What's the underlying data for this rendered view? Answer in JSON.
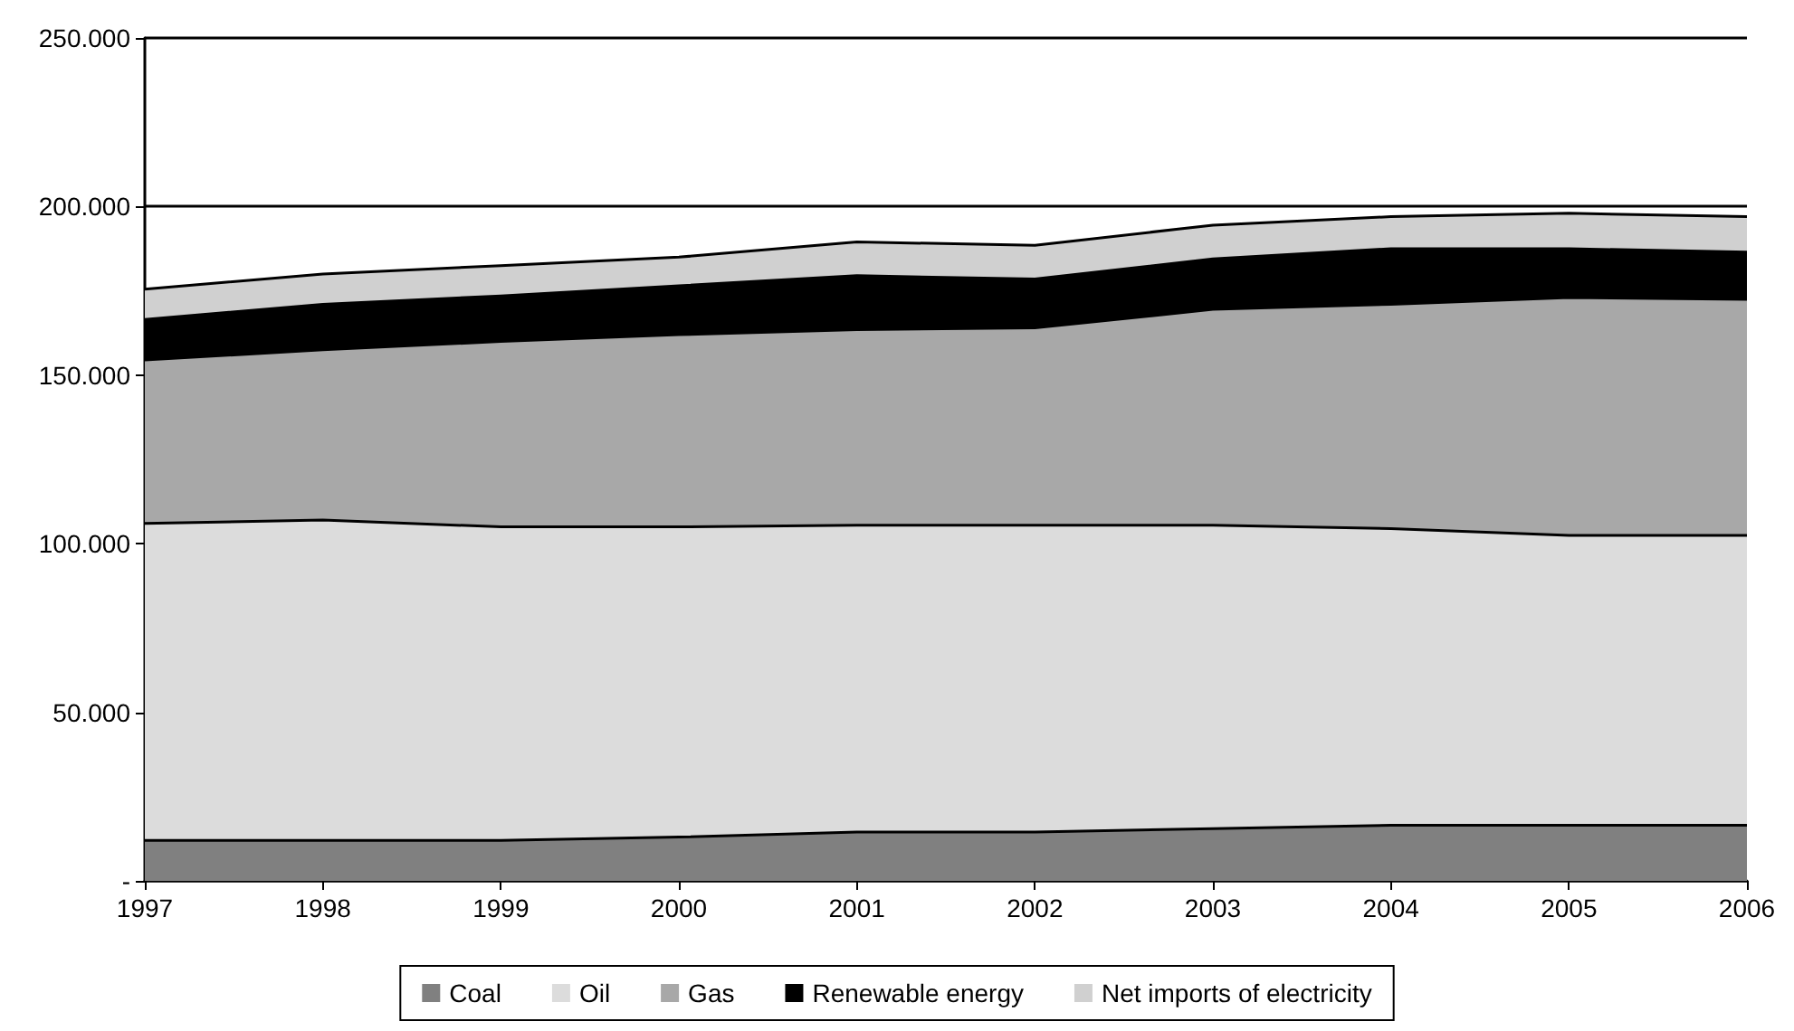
{
  "chart_data": {
    "type": "area",
    "stacked": true,
    "categories": [
      "1997",
      "1998",
      "1999",
      "2000",
      "2001",
      "2002",
      "2003",
      "2004",
      "2005",
      "2006"
    ],
    "series": [
      {
        "name": "Coal",
        "color": "#808080",
        "values": [
          12000,
          12000,
          12000,
          13000,
          14500,
          14500,
          15500,
          16500,
          16500,
          16500
        ]
      },
      {
        "name": "Oil",
        "color": "#dcdcdc",
        "values": [
          94000,
          95000,
          93000,
          92000,
          91000,
          91000,
          90000,
          88000,
          86000,
          86000
        ]
      },
      {
        "name": "Gas",
        "color": "#a8a8a8",
        "values": [
          48500,
          50500,
          55000,
          57000,
          58000,
          58500,
          64000,
          66500,
          70500,
          70000
        ]
      },
      {
        "name": "Renewable energy",
        "color": "#000000",
        "values": [
          12000,
          13500,
          13500,
          14500,
          16000,
          14500,
          15000,
          16500,
          14500,
          14000
        ]
      },
      {
        "name": "Net imports of electricity",
        "color": "#d0d0d0",
        "values": [
          9000,
          9000,
          9000,
          8500,
          10000,
          10000,
          10000,
          9500,
          10500,
          10500
        ]
      }
    ],
    "ylim": [
      0,
      250000
    ],
    "yticks": [
      {
        "value": 0,
        "label": "-"
      },
      {
        "value": 50000,
        "label": "50.000"
      },
      {
        "value": 100000,
        "label": "100.000"
      },
      {
        "value": 150000,
        "label": "150.000"
      },
      {
        "value": 200000,
        "label": "200.000"
      },
      {
        "value": 250000,
        "label": "250.000"
      }
    ],
    "grid": "y",
    "legend": "bottom",
    "marker": "none"
  }
}
